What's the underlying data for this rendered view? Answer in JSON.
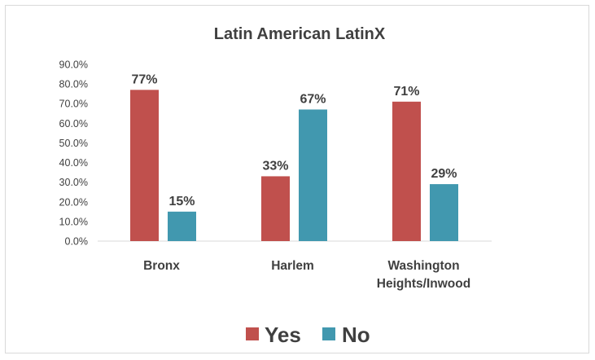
{
  "chart_data": {
    "type": "bar",
    "title": "Latin American LatinX",
    "categories": [
      "Bronx",
      "Harlem",
      "Washington Heights/Inwood"
    ],
    "category_lines": [
      [
        "Bronx"
      ],
      [
        "Harlem"
      ],
      [
        "Washington",
        "Heights/Inwood"
      ]
    ],
    "series": [
      {
        "name": "Yes",
        "color": "#c0504d",
        "values": [
          77,
          33,
          71
        ],
        "labels": [
          "77%",
          "33%",
          "71%"
        ]
      },
      {
        "name": "No",
        "color": "#4198af",
        "values": [
          15,
          67,
          29
        ],
        "labels": [
          "15%",
          "67%",
          "29%"
        ]
      }
    ],
    "ylim": [
      0,
      90
    ],
    "yticks": [
      "0.0%",
      "10.0%",
      "20.0%",
      "30.0%",
      "40.0%",
      "50.0%",
      "60.0%",
      "70.0%",
      "80.0%",
      "90.0%"
    ],
    "legend": "bottom",
    "grid": false
  }
}
